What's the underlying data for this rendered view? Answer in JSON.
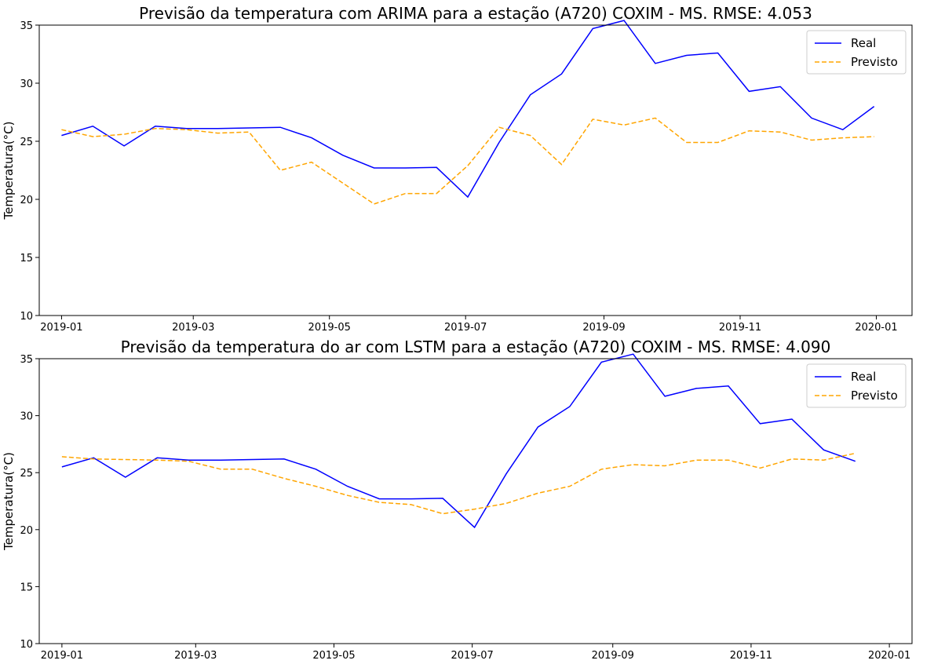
{
  "chart_data": [
    {
      "type": "line",
      "title": "Previsão da temperatura com ARIMA para a estação (A720) COXIM - MS. RMSE: 4.053",
      "xlabel": "",
      "ylabel": "Temperatura(°C)",
      "ylim": [
        10,
        35
      ],
      "xlim": [
        "2018-12-22",
        "2020-01-17"
      ],
      "x_ticks": [
        "2019-01",
        "2019-03",
        "2019-05",
        "2019-07",
        "2019-09",
        "2019-11",
        "2020-01"
      ],
      "y_ticks": [
        10,
        15,
        20,
        25,
        30,
        35
      ],
      "grid": false,
      "legend": "top-right",
      "x": [
        "2019-01-01",
        "2019-01-15",
        "2019-01-29",
        "2019-02-12",
        "2019-02-26",
        "2019-03-12",
        "2019-03-26",
        "2019-04-09",
        "2019-04-23",
        "2019-05-07",
        "2019-05-21",
        "2019-06-04",
        "2019-06-18",
        "2019-07-02",
        "2019-07-16",
        "2019-07-30",
        "2019-08-13",
        "2019-08-27",
        "2019-09-10",
        "2019-09-24",
        "2019-10-08",
        "2019-10-22",
        "2019-11-05",
        "2019-11-19",
        "2019-12-03",
        "2019-12-17",
        "2019-12-31"
      ],
      "series": [
        {
          "name": "Real",
          "color": "#0000ff",
          "style": "solid",
          "values": [
            25.5,
            26.3,
            24.6,
            26.3,
            26.1,
            26.1,
            26.15,
            26.2,
            25.3,
            23.8,
            22.7,
            22.7,
            22.75,
            20.2,
            24.9,
            29.0,
            30.8,
            34.7,
            35.4,
            31.7,
            32.4,
            32.6,
            29.3,
            29.7,
            27.0,
            26.0,
            28.0
          ]
        },
        {
          "name": "Previsto",
          "color": "#ffa500",
          "style": "dashed",
          "values": [
            26.0,
            25.4,
            25.6,
            26.1,
            26.0,
            25.7,
            25.8,
            22.5,
            23.2,
            21.4,
            19.6,
            20.5,
            20.5,
            22.9,
            26.2,
            25.5,
            23.0,
            26.9,
            26.4,
            27.0,
            24.9,
            24.9,
            25.9,
            25.8,
            25.1,
            25.3,
            25.4
          ]
        }
      ]
    },
    {
      "type": "line",
      "title": "Previsão da temperatura do ar com LSTM para a estação (A720) COXIM - MS. RMSE: 4.090",
      "xlabel": "",
      "ylabel": "Temperatura(°C)",
      "ylim": [
        10,
        35
      ],
      "xlim": [
        "2018-12-22",
        "2020-01-11"
      ],
      "x_ticks": [
        "2019-01",
        "2019-03",
        "2019-05",
        "2019-07",
        "2019-09",
        "2019-11",
        "2020-01"
      ],
      "y_ticks": [
        10,
        15,
        20,
        25,
        30,
        35
      ],
      "grid": false,
      "legend": "top-right",
      "x": [
        "2019-01-01",
        "2019-01-15",
        "2019-01-29",
        "2019-02-12",
        "2019-02-26",
        "2019-03-12",
        "2019-03-26",
        "2019-04-09",
        "2019-04-23",
        "2019-05-07",
        "2019-05-21",
        "2019-06-04",
        "2019-06-18",
        "2019-07-02",
        "2019-07-16",
        "2019-07-30",
        "2019-08-13",
        "2019-08-27",
        "2019-09-10",
        "2019-09-24",
        "2019-10-08",
        "2019-10-22",
        "2019-11-05",
        "2019-11-19",
        "2019-12-03",
        "2019-12-17"
      ],
      "series": [
        {
          "name": "Real",
          "color": "#0000ff",
          "style": "solid",
          "values": [
            25.5,
            26.3,
            24.6,
            26.3,
            26.1,
            26.1,
            26.15,
            26.2,
            25.3,
            23.8,
            22.7,
            22.7,
            22.75,
            20.2,
            24.9,
            29.0,
            30.8,
            34.7,
            35.4,
            31.7,
            32.4,
            32.6,
            29.3,
            29.7,
            27.0,
            26.0
          ]
        },
        {
          "name": "Previsto",
          "color": "#ffa500",
          "style": "dashed",
          "values": [
            26.4,
            26.2,
            26.15,
            26.1,
            26.0,
            25.3,
            25.3,
            24.5,
            23.8,
            23.0,
            22.4,
            22.2,
            21.4,
            21.8,
            22.3,
            23.2,
            23.8,
            25.3,
            25.7,
            25.6,
            26.1,
            26.1,
            25.4,
            26.2,
            26.1,
            26.7
          ]
        }
      ]
    }
  ]
}
